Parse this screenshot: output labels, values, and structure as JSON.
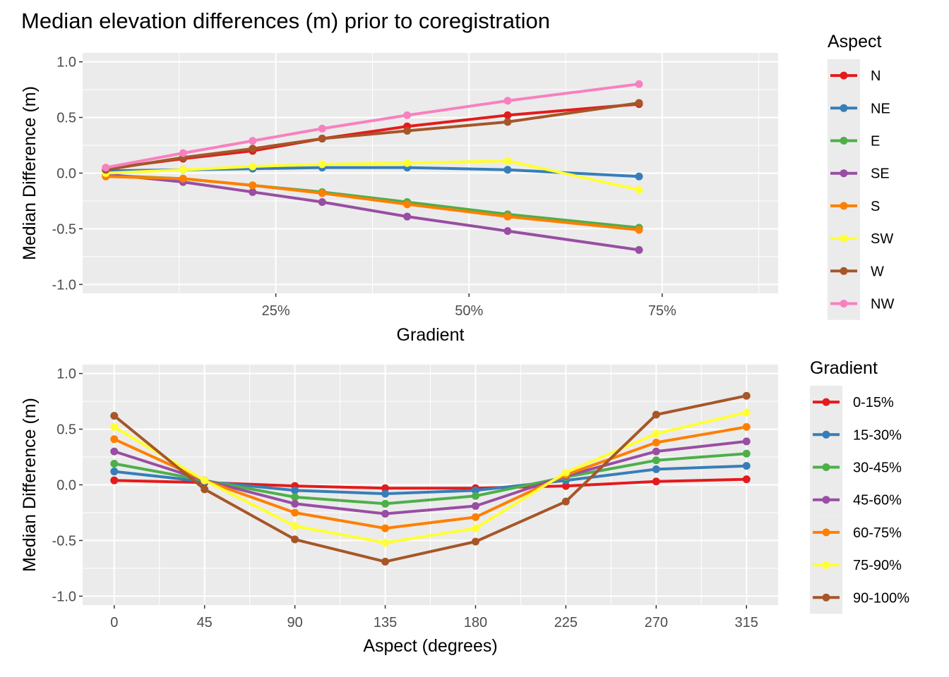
{
  "title": "Median elevation differences (m) prior to coregistration",
  "chart_data": [
    {
      "type": "line",
      "xlabel": "Gradient",
      "ylabel": "Median Difference (m)",
      "x_format": "percent",
      "xlim": [
        0.0,
        0.9
      ],
      "ylim": [
        -1.08,
        1.08
      ],
      "x_ticks": [
        0.25,
        0.5,
        0.75
      ],
      "x_tick_labels": [
        "25%",
        "50%",
        "75%"
      ],
      "y_ticks": [
        -1.0,
        -0.5,
        0.0,
        0.5,
        1.0
      ],
      "y_tick_labels": [
        "-1.0",
        "-0.5",
        "0.0",
        "0.5",
        "1.0"
      ],
      "grid": true,
      "legend_title": "Aspect",
      "legend_position": "right",
      "x": [
        0.03,
        0.13,
        0.22,
        0.31,
        0.42,
        0.55,
        0.72
      ],
      "series": [
        {
          "name": "N",
          "color": "#E41A1C",
          "values": [
            0.04,
            0.13,
            0.2,
            0.31,
            0.42,
            0.52,
            0.62
          ]
        },
        {
          "name": "NE",
          "color": "#377EB8",
          "values": [
            0.02,
            0.03,
            0.04,
            0.05,
            0.05,
            0.03,
            -0.03
          ]
        },
        {
          "name": "E",
          "color": "#4DAF4A",
          "values": [
            -0.02,
            -0.05,
            -0.11,
            -0.17,
            -0.26,
            -0.37,
            -0.49
          ]
        },
        {
          "name": "SE",
          "color": "#984EA3",
          "values": [
            -0.01,
            -0.08,
            -0.17,
            -0.26,
            -0.39,
            -0.52,
            -0.69
          ]
        },
        {
          "name": "S",
          "color": "#FF7F00",
          "values": [
            -0.03,
            -0.05,
            -0.11,
            -0.18,
            -0.28,
            -0.39,
            -0.51
          ]
        },
        {
          "name": "SW",
          "color": "#FFFF33",
          "values": [
            0.0,
            0.03,
            0.06,
            0.08,
            0.09,
            0.11,
            -0.15
          ]
        },
        {
          "name": "W",
          "color": "#A65628",
          "values": [
            0.03,
            0.14,
            0.22,
            0.31,
            0.38,
            0.46,
            0.63
          ]
        },
        {
          "name": "NW",
          "color": "#F781BF",
          "values": [
            0.05,
            0.18,
            0.29,
            0.4,
            0.52,
            0.65,
            0.8
          ]
        }
      ]
    },
    {
      "type": "line",
      "xlabel": "Aspect (degrees)",
      "ylabel": "Median Difference (m)",
      "xlim": [
        -15.75,
        330.75
      ],
      "ylim": [
        -1.08,
        1.08
      ],
      "x_ticks": [
        0,
        45,
        90,
        135,
        180,
        225,
        270,
        315
      ],
      "x_tick_labels": [
        "0",
        "45",
        "90",
        "135",
        "180",
        "225",
        "270",
        "315"
      ],
      "y_ticks": [
        -1.0,
        -0.5,
        0.0,
        0.5,
        1.0
      ],
      "y_tick_labels": [
        "-1.0",
        "-0.5",
        "0.0",
        "0.5",
        "1.0"
      ],
      "grid": true,
      "legend_title": "Gradient",
      "legend_position": "right",
      "x": [
        0,
        45,
        90,
        135,
        180,
        225,
        270,
        315
      ],
      "series": [
        {
          "name": "0-15%",
          "color": "#E41A1C",
          "values": [
            0.04,
            0.02,
            -0.01,
            -0.03,
            -0.03,
            -0.01,
            0.03,
            0.05
          ]
        },
        {
          "name": "15-30%",
          "color": "#377EB8",
          "values": [
            0.12,
            0.03,
            -0.05,
            -0.08,
            -0.05,
            0.04,
            0.14,
            0.17
          ]
        },
        {
          "name": "30-45%",
          "color": "#4DAF4A",
          "values": [
            0.19,
            0.04,
            -0.11,
            -0.17,
            -0.1,
            0.07,
            0.22,
            0.28
          ]
        },
        {
          "name": "45-60%",
          "color": "#984EA3",
          "values": [
            0.3,
            0.04,
            -0.17,
            -0.26,
            -0.19,
            0.08,
            0.3,
            0.39
          ]
        },
        {
          "name": "60-75%",
          "color": "#FF7F00",
          "values": [
            0.41,
            0.04,
            -0.25,
            -0.39,
            -0.29,
            0.09,
            0.38,
            0.52
          ]
        },
        {
          "name": "75-90%",
          "color": "#FFFF33",
          "values": [
            0.52,
            0.04,
            -0.37,
            -0.52,
            -0.39,
            0.11,
            0.46,
            0.65
          ]
        },
        {
          "name": "90-100%",
          "color": "#A65628",
          "values": [
            0.62,
            -0.04,
            -0.49,
            -0.69,
            -0.51,
            -0.15,
            0.63,
            0.8
          ]
        }
      ]
    }
  ]
}
